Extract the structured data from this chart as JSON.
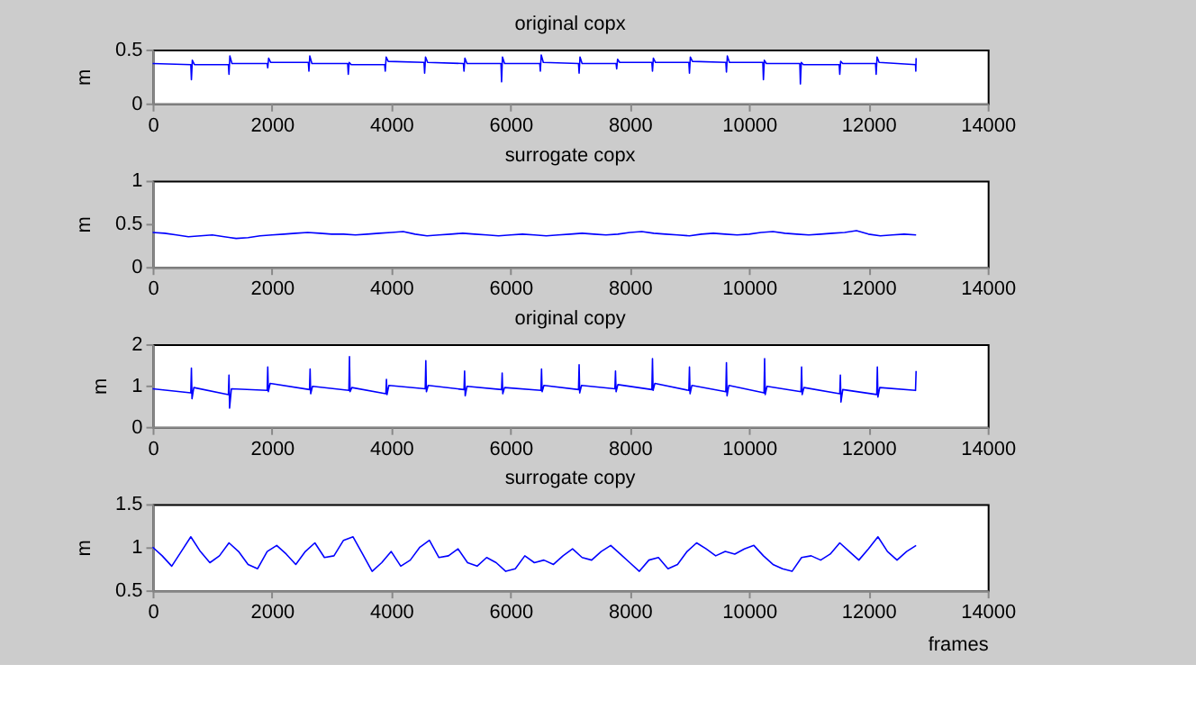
{
  "chart_data": [
    {
      "type": "line",
      "title": "original copx",
      "ylabel": "m",
      "xlim": [
        0,
        14000
      ],
      "xticks": [
        0,
        2000,
        4000,
        6000,
        8000,
        10000,
        12000,
        14000
      ],
      "ylim": [
        0,
        0.5
      ],
      "yticks": [
        0,
        0.5
      ],
      "grid": false,
      "legend": false,
      "x": [
        0,
        640,
        650,
        665,
        700,
        1270,
        1280,
        1295,
        1330,
        1920,
        1930,
        1945,
        1980,
        2610,
        2620,
        2635,
        2670,
        3270,
        3280,
        3295,
        3330,
        3890,
        3900,
        3915,
        3950,
        4550,
        4560,
        4575,
        4610,
        5210,
        5220,
        5235,
        5270,
        5840,
        5850,
        5865,
        5900,
        6490,
        6500,
        6515,
        6550,
        7140,
        7150,
        7165,
        7200,
        7770,
        7780,
        7795,
        7830,
        8370,
        8380,
        8395,
        8430,
        8990,
        9000,
        9015,
        9050,
        9610,
        9620,
        9635,
        9670,
        10230,
        10240,
        10255,
        10290,
        10850,
        10860,
        10875,
        10910,
        11510,
        11520,
        11535,
        11570,
        12120,
        12130,
        12145,
        12180,
        12790,
        12795,
        12800
      ],
      "series": [
        {
          "color": "#0000ff",
          "values": [
            0.37,
            0.36,
            0.22,
            0.4,
            0.36,
            0.36,
            0.27,
            0.44,
            0.37,
            0.37,
            0.33,
            0.42,
            0.38,
            0.38,
            0.3,
            0.44,
            0.37,
            0.37,
            0.27,
            0.38,
            0.36,
            0.36,
            0.3,
            0.43,
            0.39,
            0.38,
            0.28,
            0.43,
            0.38,
            0.37,
            0.3,
            0.42,
            0.37,
            0.37,
            0.2,
            0.43,
            0.37,
            0.37,
            0.3,
            0.45,
            0.38,
            0.37,
            0.28,
            0.43,
            0.37,
            0.37,
            0.32,
            0.41,
            0.38,
            0.38,
            0.3,
            0.42,
            0.38,
            0.38,
            0.28,
            0.43,
            0.39,
            0.38,
            0.29,
            0.44,
            0.38,
            0.38,
            0.22,
            0.4,
            0.37,
            0.37,
            0.18,
            0.38,
            0.36,
            0.36,
            0.27,
            0.39,
            0.37,
            0.37,
            0.27,
            0.43,
            0.38,
            0.36,
            0.3,
            0.42
          ]
        }
      ]
    },
    {
      "type": "line",
      "title": "surrogate copx",
      "ylabel": "m",
      "xlim": [
        0,
        14000
      ],
      "xticks": [
        0,
        2000,
        4000,
        6000,
        8000,
        10000,
        12000,
        14000
      ],
      "ylim": [
        0,
        1
      ],
      "yticks": [
        0,
        0.5,
        1
      ],
      "grid": false,
      "legend": false,
      "x": [
        0,
        200,
        400,
        600,
        800,
        1000,
        1200,
        1400,
        1600,
        1800,
        2000,
        2200,
        2400,
        2600,
        2800,
        3000,
        3200,
        3400,
        3600,
        3800,
        4000,
        4200,
        4400,
        4600,
        4800,
        5000,
        5200,
        5400,
        5600,
        5800,
        6000,
        6200,
        6400,
        6600,
        6800,
        7000,
        7200,
        7400,
        7600,
        7800,
        8000,
        8200,
        8400,
        8600,
        8800,
        9000,
        9200,
        9400,
        9600,
        9800,
        10000,
        10200,
        10400,
        10600,
        10800,
        11000,
        11200,
        11400,
        11600,
        11800,
        12000,
        12200,
        12400,
        12600,
        12800
      ],
      "series": [
        {
          "color": "#0000ff",
          "values": [
            0.4,
            0.39,
            0.37,
            0.35,
            0.36,
            0.37,
            0.35,
            0.33,
            0.34,
            0.36,
            0.37,
            0.38,
            0.39,
            0.4,
            0.39,
            0.38,
            0.38,
            0.37,
            0.38,
            0.39,
            0.4,
            0.41,
            0.38,
            0.36,
            0.37,
            0.38,
            0.39,
            0.38,
            0.37,
            0.36,
            0.37,
            0.38,
            0.37,
            0.36,
            0.37,
            0.38,
            0.39,
            0.38,
            0.37,
            0.38,
            0.4,
            0.41,
            0.39,
            0.38,
            0.37,
            0.36,
            0.38,
            0.39,
            0.38,
            0.37,
            0.38,
            0.4,
            0.41,
            0.39,
            0.38,
            0.37,
            0.38,
            0.39,
            0.4,
            0.42,
            0.38,
            0.36,
            0.37,
            0.38,
            0.37
          ]
        }
      ]
    },
    {
      "type": "line",
      "title": "original copy",
      "ylabel": "m",
      "xlim": [
        0,
        14000
      ],
      "xticks": [
        0,
        2000,
        4000,
        6000,
        8000,
        10000,
        12000,
        14000
      ],
      "ylim": [
        0,
        2
      ],
      "yticks": [
        0,
        1,
        2
      ],
      "grid": false,
      "legend": false,
      "x": [
        0,
        640,
        650,
        660,
        690,
        1270,
        1280,
        1290,
        1320,
        1920,
        1930,
        1940,
        1970,
        2630,
        2640,
        2650,
        2680,
        3290,
        3300,
        3310,
        3340,
        3910,
        3920,
        3930,
        3960,
        4570,
        4580,
        4590,
        4620,
        5220,
        5230,
        5240,
        5270,
        5850,
        5860,
        5870,
        5900,
        6510,
        6520,
        6530,
        6560,
        7140,
        7150,
        7160,
        7190,
        7750,
        7760,
        7770,
        7800,
        8370,
        8380,
        8390,
        8420,
        8990,
        9000,
        9010,
        9040,
        9610,
        9620,
        9630,
        9660,
        10250,
        10260,
        10270,
        10300,
        10870,
        10880,
        10890,
        10920,
        11520,
        11530,
        11540,
        11570,
        12140,
        12150,
        12160,
        12190,
        12790,
        12800
      ],
      "series": [
        {
          "color": "#0000ff",
          "values": [
            0.92,
            0.82,
            1.42,
            0.68,
            0.95,
            0.78,
            1.25,
            0.45,
            0.92,
            0.88,
            1.45,
            0.85,
            1.05,
            0.9,
            1.4,
            0.8,
            0.98,
            0.88,
            1.7,
            0.85,
            0.95,
            0.8,
            1.15,
            0.78,
            1.0,
            0.92,
            1.6,
            0.85,
            1.0,
            0.9,
            1.35,
            0.75,
            0.98,
            0.9,
            1.3,
            0.8,
            0.95,
            0.88,
            1.4,
            0.85,
            1.0,
            0.9,
            1.5,
            0.82,
            1.0,
            0.92,
            1.35,
            0.85,
            1.02,
            0.9,
            1.65,
            0.88,
            1.05,
            0.88,
            1.45,
            0.8,
            1.0,
            0.85,
            1.55,
            0.75,
            1.0,
            0.82,
            1.65,
            0.78,
            0.98,
            0.85,
            1.45,
            0.78,
            0.95,
            0.8,
            1.25,
            0.6,
            0.9,
            0.78,
            1.45,
            0.72,
            0.95,
            0.88,
            1.35
          ]
        }
      ]
    },
    {
      "type": "line",
      "title": "surrogate copy",
      "ylabel": "m",
      "xlabel": "frames",
      "xlim": [
        0,
        14000
      ],
      "xticks": [
        0,
        2000,
        4000,
        6000,
        8000,
        10000,
        12000,
        14000
      ],
      "ylim": [
        0.5,
        1.5
      ],
      "yticks": [
        0.5,
        1,
        1.5
      ],
      "grid": false,
      "legend": false,
      "x": [
        0,
        160,
        320,
        480,
        640,
        800,
        960,
        1120,
        1280,
        1440,
        1600,
        1760,
        1920,
        2080,
        2240,
        2400,
        2560,
        2720,
        2880,
        3040,
        3200,
        3360,
        3520,
        3680,
        3840,
        4000,
        4160,
        4320,
        4480,
        4640,
        4800,
        4960,
        5120,
        5280,
        5440,
        5600,
        5760,
        5920,
        6080,
        6240,
        6400,
        6560,
        6720,
        6880,
        7040,
        7200,
        7360,
        7520,
        7680,
        7840,
        8000,
        8160,
        8320,
        8480,
        8640,
        8800,
        8960,
        9120,
        9280,
        9440,
        9600,
        9760,
        9920,
        10080,
        10240,
        10400,
        10560,
        10720,
        10880,
        11040,
        11200,
        11360,
        11520,
        11680,
        11840,
        12000,
        12160,
        12320,
        12480,
        12640,
        12800
      ],
      "series": [
        {
          "color": "#0000ff",
          "values": [
            1.0,
            0.9,
            0.78,
            0.95,
            1.12,
            0.95,
            0.82,
            0.9,
            1.05,
            0.95,
            0.8,
            0.75,
            0.95,
            1.02,
            0.92,
            0.8,
            0.95,
            1.05,
            0.88,
            0.9,
            1.08,
            1.12,
            0.92,
            0.72,
            0.82,
            0.95,
            0.78,
            0.85,
            1.0,
            1.08,
            0.88,
            0.9,
            0.98,
            0.82,
            0.78,
            0.88,
            0.82,
            0.72,
            0.75,
            0.9,
            0.82,
            0.85,
            0.8,
            0.9,
            0.98,
            0.88,
            0.85,
            0.95,
            1.02,
            0.92,
            0.82,
            0.72,
            0.85,
            0.88,
            0.75,
            0.8,
            0.95,
            1.05,
            0.98,
            0.9,
            0.95,
            0.92,
            0.98,
            1.02,
            0.9,
            0.8,
            0.75,
            0.72,
            0.88,
            0.9,
            0.85,
            0.92,
            1.05,
            0.95,
            0.85,
            0.98,
            1.12,
            0.95,
            0.85,
            0.95,
            1.02
          ]
        }
      ]
    }
  ]
}
